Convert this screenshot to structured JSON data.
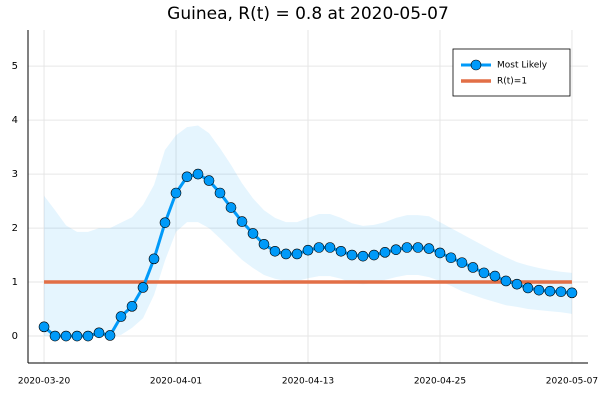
{
  "chart_data": {
    "type": "line",
    "title": "Guinea, R(t) = 0.8 at 2020-05-07",
    "x": [
      "2020-03-20",
      "2020-03-21",
      "2020-03-22",
      "2020-03-23",
      "2020-03-24",
      "2020-03-25",
      "2020-03-26",
      "2020-03-27",
      "2020-03-28",
      "2020-03-29",
      "2020-03-30",
      "2020-03-31",
      "2020-04-01",
      "2020-04-02",
      "2020-04-03",
      "2020-04-04",
      "2020-04-05",
      "2020-04-06",
      "2020-04-07",
      "2020-04-08",
      "2020-04-09",
      "2020-04-10",
      "2020-04-11",
      "2020-04-12",
      "2020-04-13",
      "2020-04-14",
      "2020-04-15",
      "2020-04-16",
      "2020-04-17",
      "2020-04-18",
      "2020-04-19",
      "2020-04-20",
      "2020-04-21",
      "2020-04-22",
      "2020-04-23",
      "2020-04-24",
      "2020-04-25",
      "2020-04-26",
      "2020-04-27",
      "2020-04-28",
      "2020-04-29",
      "2020-04-30",
      "2020-05-01",
      "2020-05-02",
      "2020-05-03",
      "2020-05-04",
      "2020-05-05",
      "2020-05-06",
      "2020-05-07"
    ],
    "series": [
      {
        "name": "Most Likely",
        "color": "#009af9",
        "values": [
          0.17,
          0,
          0,
          0,
          0,
          0.06,
          0.01,
          0.36,
          0.55,
          0.9,
          1.43,
          2.1,
          2.65,
          2.95,
          3.0,
          2.88,
          2.65,
          2.38,
          2.12,
          1.9,
          1.7,
          1.57,
          1.52,
          1.52,
          1.59,
          1.64,
          1.64,
          1.57,
          1.5,
          1.48,
          1.5,
          1.55,
          1.6,
          1.64,
          1.64,
          1.62,
          1.54,
          1.45,
          1.36,
          1.27,
          1.17,
          1.11,
          1.02,
          0.96,
          0.89,
          0.85,
          0.83,
          0.82,
          0.8
        ]
      }
    ],
    "band": {
      "color": "#009af9",
      "lower": [
        0,
        0,
        0,
        0,
        0,
        0,
        0,
        0.02,
        0.15,
        0.33,
        0.76,
        1.4,
        1.93,
        2.11,
        2.11,
        2.0,
        1.81,
        1.61,
        1.41,
        1.26,
        1.13,
        1.06,
        1.02,
        1.02,
        1.07,
        1.11,
        1.11,
        1.06,
        0.98,
        0.96,
        0.98,
        1.04,
        1.09,
        1.13,
        1.13,
        1.09,
        1.02,
        0.93,
        0.83,
        0.76,
        0.69,
        0.63,
        0.57,
        0.54,
        0.5,
        0.48,
        0.46,
        0.44,
        0.41
      ],
      "upper": [
        2.6,
        2.33,
        2.05,
        1.93,
        1.93,
        2.0,
        2.0,
        2.1,
        2.2,
        2.43,
        2.8,
        3.45,
        3.72,
        3.87,
        3.9,
        3.76,
        3.48,
        3.17,
        2.83,
        2.55,
        2.33,
        2.19,
        2.11,
        2.11,
        2.19,
        2.26,
        2.26,
        2.19,
        2.09,
        2.04,
        2.06,
        2.11,
        2.19,
        2.24,
        2.24,
        2.22,
        2.11,
        2.0,
        1.89,
        1.78,
        1.67,
        1.56,
        1.46,
        1.37,
        1.31,
        1.26,
        1.22,
        1.19,
        1.17
      ]
    },
    "hline": {
      "name": "R(t)=1",
      "value": 1,
      "color": "#e26f46"
    },
    "xlim": [
      "2020-03-18T13:00",
      "2020-05-08T11:00"
    ],
    "xticks": [
      "2020-03-20",
      "2020-04-01",
      "2020-04-13",
      "2020-04-25",
      "2020-05-07"
    ],
    "ylim": [
      -0.5,
      5.67
    ],
    "yticks": [
      0,
      1,
      2,
      3,
      4,
      5
    ],
    "grid": true,
    "legend": "top-right"
  }
}
